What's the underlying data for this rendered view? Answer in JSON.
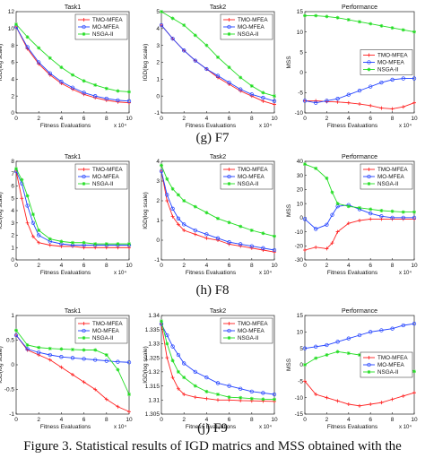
{
  "figure": {
    "row_captions": [
      "(g) F7",
      "(h) F8",
      "(j) F9"
    ],
    "caption": "Figure 3.   Statistical results of IGD matrics and MSS obtained with the",
    "colors": {
      "TMO-MFEA": "#ff2020",
      "MO-MFEA": "#2040ff",
      "NSGA-II": "#22dd22"
    },
    "markers": {
      "TMO-MFEA": "plus",
      "MO-MFEA": "circle",
      "NSGA-II": "star"
    }
  },
  "chart_data": [
    {
      "type": "line",
      "title": "Task1",
      "xlabel": "Fitness Evaluations",
      "ylabel": "IGD(log scale)",
      "x_exponent": "x 10⁴",
      "xlim": [
        0,
        10
      ],
      "ylim": [
        0,
        12
      ],
      "xticks": [
        0,
        2,
        4,
        6,
        8,
        10
      ],
      "yticks": [
        0,
        2,
        4,
        6,
        8,
        10,
        12
      ],
      "legend": "top-right",
      "legend_entries": [
        "TMO-MFEA",
        "MO-MFEA",
        "NSGA-II"
      ],
      "series": [
        {
          "name": "TMO-MFEA",
          "x": [
            0,
            1,
            2,
            3,
            4,
            5,
            6,
            7,
            8,
            9,
            10
          ],
          "values": [
            10.2,
            7.6,
            5.8,
            4.5,
            3.5,
            2.8,
            2.2,
            1.8,
            1.5,
            1.3,
            1.2
          ]
        },
        {
          "name": "MO-MFEA",
          "x": [
            0,
            1,
            2,
            3,
            4,
            5,
            6,
            7,
            8,
            9,
            10
          ],
          "values": [
            10.2,
            7.8,
            6.0,
            4.7,
            3.7,
            3.0,
            2.4,
            2.0,
            1.7,
            1.5,
            1.4
          ]
        },
        {
          "name": "NSGA-II",
          "x": [
            0,
            1,
            2,
            3,
            4,
            5,
            6,
            7,
            8,
            9,
            10
          ],
          "values": [
            10.5,
            9.0,
            7.7,
            6.5,
            5.4,
            4.5,
            3.8,
            3.3,
            2.9,
            2.6,
            2.5
          ]
        }
      ]
    },
    {
      "type": "line",
      "title": "Task2",
      "xlabel": "Fitness Evaluations",
      "ylabel": "IGD(log scale)",
      "x_exponent": "x 10⁴",
      "xlim": [
        0,
        10
      ],
      "ylim": [
        -1,
        5
      ],
      "xticks": [
        0,
        2,
        4,
        6,
        8,
        10
      ],
      "yticks": [
        -1,
        0,
        1,
        2,
        3,
        4,
        5
      ],
      "legend": "top-right",
      "legend_entries": [
        "TMO-MFEA",
        "MO-MFEA",
        "NSGA-II"
      ],
      "series": [
        {
          "name": "TMO-MFEA",
          "x": [
            0,
            1,
            2,
            3,
            4,
            5,
            6,
            7,
            8,
            9,
            10
          ],
          "values": [
            4.2,
            3.4,
            2.7,
            2.1,
            1.6,
            1.1,
            0.7,
            0.3,
            0.0,
            -0.3,
            -0.5
          ]
        },
        {
          "name": "MO-MFEA",
          "x": [
            0,
            1,
            2,
            3,
            4,
            5,
            6,
            7,
            8,
            9,
            10
          ],
          "values": [
            4.2,
            3.4,
            2.7,
            2.1,
            1.6,
            1.2,
            0.8,
            0.4,
            0.1,
            -0.1,
            -0.3
          ]
        },
        {
          "name": "NSGA-II",
          "x": [
            0,
            1,
            2,
            3,
            4,
            5,
            6,
            7,
            8,
            9,
            10
          ],
          "values": [
            5.0,
            4.6,
            4.2,
            3.6,
            3.0,
            2.3,
            1.7,
            1.1,
            0.6,
            0.2,
            0.0
          ]
        }
      ]
    },
    {
      "type": "line",
      "title": "Performance",
      "xlabel": "Fitness Evaluations",
      "ylabel": "MSS",
      "x_exponent": "x 10⁴",
      "xlim": [
        0,
        10
      ],
      "ylim": [
        -10,
        15
      ],
      "xticks": [
        0,
        2,
        4,
        6,
        8,
        10
      ],
      "yticks": [
        -10,
        -5,
        0,
        5,
        10,
        15
      ],
      "legend": "right",
      "legend_entries": [
        "TMO-MFEA",
        "MO-MFEA",
        "NSGA-II"
      ],
      "series": [
        {
          "name": "TMO-MFEA",
          "x": [
            0,
            1,
            2,
            3,
            4,
            5,
            6,
            7,
            8,
            9,
            10
          ],
          "values": [
            -7,
            -7,
            -7.2,
            -7.3,
            -7.5,
            -7.8,
            -8.2,
            -8.8,
            -9,
            -8.5,
            -7.5
          ]
        },
        {
          "name": "MO-MFEA",
          "x": [
            0,
            1,
            2,
            3,
            4,
            5,
            6,
            7,
            8,
            9,
            10
          ],
          "values": [
            -7,
            -7.5,
            -7,
            -6.5,
            -5.5,
            -4.5,
            -3.5,
            -2.5,
            -1.8,
            -1.5,
            -1.5
          ]
        },
        {
          "name": "NSGA-II",
          "x": [
            0,
            1,
            2,
            3,
            4,
            5,
            6,
            7,
            8,
            9,
            10
          ],
          "values": [
            14,
            14,
            13.8,
            13.5,
            13,
            12.5,
            12,
            11.5,
            11,
            10.5,
            10
          ]
        }
      ]
    },
    {
      "type": "line",
      "title": "Task1",
      "xlabel": "Fitness Evaluations",
      "ylabel": "IGD(log scale)",
      "x_exponent": "x 10⁴",
      "xlim": [
        0,
        10
      ],
      "ylim": [
        0,
        8
      ],
      "xticks": [
        0,
        2,
        4,
        6,
        8,
        10
      ],
      "yticks": [
        0,
        1,
        2,
        3,
        4,
        5,
        6,
        7,
        8
      ],
      "legend": "top-right",
      "legend_entries": [
        "TMO-MFEA",
        "MO-MFEA",
        "NSGA-II"
      ],
      "series": [
        {
          "name": "TMO-MFEA",
          "x": [
            0,
            0.5,
            1,
            1.5,
            2,
            3,
            4,
            5,
            6,
            7,
            8,
            9,
            10
          ],
          "values": [
            7.2,
            5.0,
            3.0,
            1.9,
            1.4,
            1.2,
            1.1,
            1.1,
            1.0,
            1.0,
            1.0,
            1.0,
            1.0
          ]
        },
        {
          "name": "MO-MFEA",
          "x": [
            0,
            0.5,
            1,
            1.5,
            2,
            3,
            4,
            5,
            6,
            7,
            8,
            9,
            10
          ],
          "values": [
            7.2,
            6.2,
            4.4,
            3.0,
            2.0,
            1.5,
            1.3,
            1.2,
            1.2,
            1.2,
            1.2,
            1.2,
            1.2
          ]
        },
        {
          "name": "NSGA-II",
          "x": [
            0,
            0.5,
            1,
            1.5,
            2,
            3,
            4,
            5,
            6,
            7,
            8,
            9,
            10
          ],
          "values": [
            7.4,
            6.5,
            5.2,
            3.7,
            2.4,
            1.7,
            1.5,
            1.4,
            1.4,
            1.3,
            1.3,
            1.3,
            1.3
          ]
        }
      ]
    },
    {
      "type": "line",
      "title": "Task2",
      "xlabel": "Fitness Evaluations",
      "ylabel": "IGD(log scale)",
      "x_exponent": "x 10⁴",
      "xlim": [
        0,
        10
      ],
      "ylim": [
        -1,
        4
      ],
      "xticks": [
        0,
        2,
        4,
        6,
        8,
        10
      ],
      "yticks": [
        -1,
        0,
        1,
        2,
        3,
        4
      ],
      "legend": "top-right",
      "legend_entries": [
        "TMO-MFEA",
        "MO-MFEA",
        "NSGA-II"
      ],
      "series": [
        {
          "name": "TMO-MFEA",
          "x": [
            0,
            0.5,
            1,
            1.5,
            2,
            3,
            4,
            5,
            6,
            7,
            8,
            9,
            10
          ],
          "values": [
            3.5,
            2.0,
            1.2,
            0.8,
            0.5,
            0.3,
            0.1,
            0.0,
            -0.2,
            -0.3,
            -0.4,
            -0.5,
            -0.6
          ]
        },
        {
          "name": "MO-MFEA",
          "x": [
            0,
            0.5,
            1,
            1.5,
            2,
            3,
            4,
            5,
            6,
            7,
            8,
            9,
            10
          ],
          "values": [
            3.5,
            2.3,
            1.6,
            1.1,
            0.8,
            0.5,
            0.3,
            0.1,
            -0.1,
            -0.2,
            -0.3,
            -0.4,
            -0.5
          ]
        },
        {
          "name": "NSGA-II",
          "x": [
            0,
            0.5,
            1,
            1.5,
            2,
            3,
            4,
            5,
            6,
            7,
            8,
            9,
            10
          ],
          "values": [
            3.8,
            3.1,
            2.6,
            2.3,
            2.0,
            1.7,
            1.4,
            1.1,
            0.9,
            0.7,
            0.5,
            0.35,
            0.2
          ]
        }
      ]
    },
    {
      "type": "line",
      "title": "Performance",
      "xlabel": "Fitness Evaluations",
      "ylabel": "MSS",
      "x_exponent": "x 10⁴",
      "xlim": [
        0,
        10
      ],
      "ylim": [
        -30,
        40
      ],
      "xticks": [
        0,
        2,
        4,
        6,
        8,
        10
      ],
      "yticks": [
        -30,
        -20,
        -10,
        0,
        10,
        20,
        30,
        40
      ],
      "legend": "top-right",
      "legend_entries": [
        "TMO-MFEA",
        "MO-MFEA",
        "NSGA-II"
      ],
      "series": [
        {
          "name": "TMO-MFEA",
          "x": [
            0,
            1,
            2,
            2.5,
            3,
            4,
            5,
            6,
            7,
            8,
            9,
            10
          ],
          "values": [
            -23,
            -21,
            -22,
            -18,
            -10,
            -4,
            -2,
            -1,
            -1,
            -1,
            -1,
            -1
          ]
        },
        {
          "name": "MO-MFEA",
          "x": [
            0,
            1,
            2,
            2.5,
            3,
            4,
            5,
            6,
            7,
            8,
            9,
            10
          ],
          "values": [
            -1,
            -8,
            -5,
            2,
            8,
            9,
            6,
            3,
            1,
            0,
            0,
            0
          ]
        },
        {
          "name": "NSGA-II",
          "x": [
            0,
            1,
            2,
            2.5,
            3,
            4,
            5,
            6,
            7,
            8,
            9,
            10
          ],
          "values": [
            38,
            35,
            28,
            18,
            10,
            8,
            7,
            6,
            5,
            4.5,
            4,
            4
          ]
        }
      ]
    },
    {
      "type": "line",
      "title": "Task1",
      "xlabel": "Fitness Evaluations",
      "ylabel": "IGD(log scale)",
      "x_exponent": "x 10⁴",
      "xlim": [
        0,
        10
      ],
      "ylim": [
        -1,
        1
      ],
      "xticks": [
        0,
        2,
        4,
        6,
        8,
        10
      ],
      "yticks": [
        -1,
        -0.5,
        0,
        0.5,
        1
      ],
      "legend": "top-right",
      "legend_entries": [
        "TMO-MFEA",
        "MO-MFEA",
        "NSGA-II"
      ],
      "series": [
        {
          "name": "TMO-MFEA",
          "x": [
            0,
            1,
            2,
            3,
            4,
            5,
            6,
            7,
            8,
            9,
            10
          ],
          "values": [
            0.6,
            0.3,
            0.2,
            0.1,
            -0.05,
            -0.2,
            -0.35,
            -0.5,
            -0.7,
            -0.85,
            -0.95
          ]
        },
        {
          "name": "MO-MFEA",
          "x": [
            0,
            1,
            2,
            3,
            4,
            5,
            6,
            7,
            8,
            9,
            10
          ],
          "values": [
            0.6,
            0.32,
            0.25,
            0.2,
            0.16,
            0.14,
            0.12,
            0.1,
            0.08,
            0.06,
            0.05
          ]
        },
        {
          "name": "NSGA-II",
          "x": [
            0,
            1,
            2,
            3,
            4,
            5,
            6,
            7,
            8,
            9,
            10
          ],
          "values": [
            0.7,
            0.4,
            0.35,
            0.33,
            0.32,
            0.31,
            0.3,
            0.3,
            0.2,
            -0.1,
            -0.6
          ]
        }
      ]
    },
    {
      "type": "line",
      "title": "Task2",
      "xlabel": "Fitness Evaluations",
      "ylabel": "IGD(log scale)",
      "x_exponent": "x 10⁴",
      "xlim": [
        0,
        10
      ],
      "ylim": [
        1.305,
        1.34
      ],
      "xticks": [
        0,
        2,
        4,
        6,
        8,
        10
      ],
      "yticks": [
        1.305,
        1.31,
        1.315,
        1.32,
        1.325,
        1.33,
        1.335,
        1.34
      ],
      "legend": "top-right",
      "legend_entries": [
        "TMO-MFEA",
        "MO-MFEA",
        "NSGA-II"
      ],
      "series": [
        {
          "name": "TMO-MFEA",
          "x": [
            0,
            0.5,
            1,
            1.5,
            2,
            3,
            4,
            5,
            6,
            7,
            8,
            9,
            10
          ],
          "values": [
            1.337,
            1.325,
            1.318,
            1.314,
            1.312,
            1.311,
            1.3105,
            1.31,
            1.31,
            1.3098,
            1.3097,
            1.3096,
            1.3095
          ]
        },
        {
          "name": "MO-MFEA",
          "x": [
            0,
            0.5,
            1,
            1.5,
            2,
            3,
            4,
            5,
            6,
            7,
            8,
            9,
            10
          ],
          "values": [
            1.337,
            1.333,
            1.329,
            1.326,
            1.323,
            1.32,
            1.318,
            1.316,
            1.315,
            1.314,
            1.313,
            1.3125,
            1.312
          ]
        },
        {
          "name": "NSGA-II",
          "x": [
            0,
            0.5,
            1,
            1.5,
            2,
            3,
            4,
            5,
            6,
            7,
            8,
            9,
            10
          ],
          "values": [
            1.338,
            1.33,
            1.324,
            1.32,
            1.318,
            1.315,
            1.313,
            1.312,
            1.311,
            1.3108,
            1.3105,
            1.3103,
            1.3102
          ]
        }
      ]
    },
    {
      "type": "line",
      "title": "Performance",
      "xlabel": "Fitness Evaluations",
      "ylabel": "MSS",
      "x_exponent": "x 10⁴",
      "xlim": [
        0,
        10
      ],
      "ylim": [
        -15,
        15
      ],
      "xticks": [
        0,
        2,
        4,
        6,
        8,
        10
      ],
      "yticks": [
        -15,
        -10,
        -5,
        0,
        5,
        10,
        15
      ],
      "legend": "middle-right",
      "legend_entries": [
        "TMO-MFEA",
        "MO-MFEA",
        "NSGA-II"
      ],
      "series": [
        {
          "name": "TMO-MFEA",
          "x": [
            0,
            1,
            2,
            3,
            4,
            5,
            6,
            7,
            8,
            9,
            10
          ],
          "values": [
            -5,
            -9,
            -10,
            -11,
            -12,
            -12.5,
            -12,
            -11.5,
            -10.5,
            -9.5,
            -8.5
          ]
        },
        {
          "name": "MO-MFEA",
          "x": [
            0,
            1,
            2,
            3,
            4,
            5,
            6,
            7,
            8,
            9,
            10
          ],
          "values": [
            5,
            5.5,
            6,
            7,
            8,
            9,
            10,
            10.5,
            11,
            12,
            12.5
          ]
        },
        {
          "name": "NSGA-II",
          "x": [
            0,
            1,
            2,
            3,
            4,
            5,
            6,
            7,
            8,
            9,
            10
          ],
          "values": [
            0,
            2,
            3,
            4,
            3.5,
            3,
            2.5,
            1,
            0,
            -1,
            -2
          ]
        }
      ]
    }
  ]
}
